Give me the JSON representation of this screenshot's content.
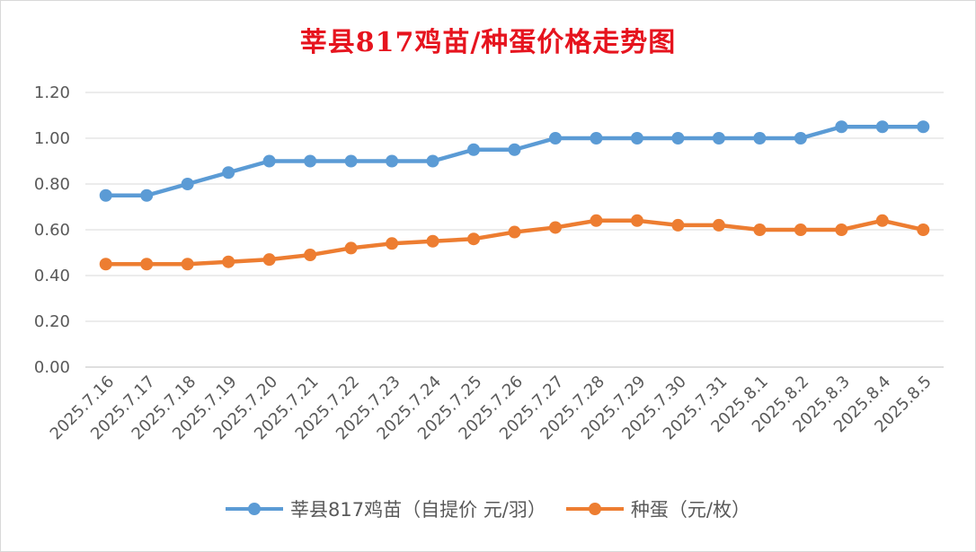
{
  "chart_data": {
    "type": "line",
    "title": "莘县817鸡苗/种蛋价格走势图",
    "categories": [
      "2025.7.16",
      "2025.7.17",
      "2025.7.18",
      "2025.7.19",
      "2025.7.20",
      "2025.7.21",
      "2025.7.22",
      "2025.7.23",
      "2025.7.24",
      "2025.7.25",
      "2025.7.26",
      "2025.7.27",
      "2025.7.28",
      "2025.7.29",
      "2025.7.30",
      "2025.7.31",
      "2025.8.1",
      "2025.8.2",
      "2025.8.3",
      "2025.8.4",
      "2025.8.5"
    ],
    "series": [
      {
        "name": "莘县817鸡苗（自提价 元/羽）",
        "color": "#5b9bd5",
        "values": [
          0.75,
          0.75,
          0.8,
          0.85,
          0.9,
          0.9,
          0.9,
          0.9,
          0.9,
          0.95,
          0.95,
          1.0,
          1.0,
          1.0,
          1.0,
          1.0,
          1.0,
          1.0,
          1.05,
          1.05,
          1.05
        ]
      },
      {
        "name": "种蛋（元/枚）",
        "color": "#ed7d31",
        "values": [
          0.45,
          0.45,
          0.45,
          0.46,
          0.47,
          0.49,
          0.52,
          0.54,
          0.55,
          0.56,
          0.59,
          0.61,
          0.64,
          0.64,
          0.62,
          0.62,
          0.6,
          0.6,
          0.6,
          0.64,
          0.6
        ]
      }
    ],
    "ylim": [
      0,
      1.2
    ],
    "yticks": [
      "0.00",
      "0.20",
      "0.40",
      "0.60",
      "0.80",
      "1.00",
      "1.20"
    ],
    "grid": true,
    "legend_position": "bottom"
  }
}
